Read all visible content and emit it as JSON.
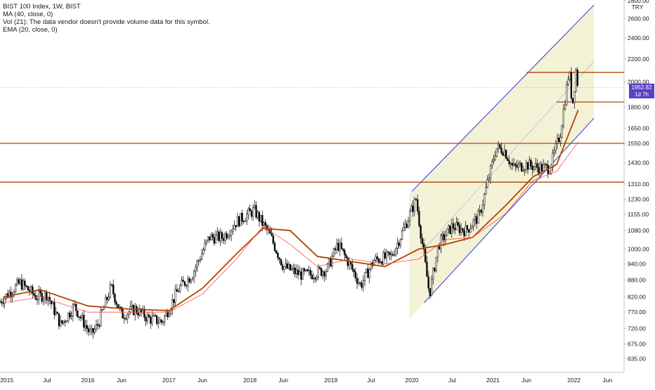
{
  "legend": {
    "title": "BIST 100 Index, 1W, BIST",
    "ma": "MA (40, close, 0)",
    "vol": "Vol (21): The data vendor doesn't provide volume data for this symbol.",
    "ema": "EMA (20, close, 0)"
  },
  "currency": "TRY",
  "last_price_label": "1952.82",
  "countdown_label": "1d 7h",
  "colors": {
    "candle": "#000000",
    "ma": "#ff4d4d",
    "ema": "#b24400",
    "channel_line": "#2a3bd6",
    "channel_fill": "#f2f0d2",
    "hline": "#b24400",
    "badge": "#5b3fc4"
  },
  "chart_data": {
    "type": "candlestick",
    "title": "BIST 100 Index, 1W, BIST",
    "y_scale": "log",
    "ylim": [
      605,
      2800
    ],
    "xlim": [
      "2014-12-01",
      "2022-08-15"
    ],
    "y_ticks": [
      "2800.00",
      "2600.00",
      "2400.00",
      "2200.00",
      "2000.00",
      "1800.00",
      "1650.00",
      "1550.00",
      "1430.00",
      "1310.00",
      "1230.00",
      "1155.00",
      "1080.00",
      "1000.00",
      "940.00",
      "880.00",
      "820.00",
      "770.00",
      "720.00",
      "675.00",
      "635.00"
    ],
    "x_ticks": [
      {
        "date": "2015-01-01",
        "label": "2015"
      },
      {
        "date": "2015-07-01",
        "label": "Jul"
      },
      {
        "date": "2016-01-01",
        "label": "2016"
      },
      {
        "date": "2016-06-01",
        "label": "Jun"
      },
      {
        "date": "2017-01-01",
        "label": "2017"
      },
      {
        "date": "2017-06-01",
        "label": "Jun"
      },
      {
        "date": "2018-01-01",
        "label": "2018"
      },
      {
        "date": "2018-06-01",
        "label": "Jun"
      },
      {
        "date": "2019-01-01",
        "label": "2019"
      },
      {
        "date": "2019-07-01",
        "label": "Jul"
      },
      {
        "date": "2020-01-01",
        "label": "2020"
      },
      {
        "date": "2020-07-01",
        "label": "Jul"
      },
      {
        "date": "2021-01-01",
        "label": "2021"
      },
      {
        "date": "2021-06-01",
        "label": "Jun"
      },
      {
        "date": "2022-01-01",
        "label": "2022"
      },
      {
        "date": "2022-06-01",
        "label": "Jun"
      }
    ],
    "close_path": [
      [
        "2014-12-01",
        805
      ],
      [
        "2015-03-01",
        870
      ],
      [
        "2015-05-15",
        820
      ],
      [
        "2015-07-01",
        830
      ],
      [
        "2015-09-01",
        730
      ],
      [
        "2015-11-01",
        790
      ],
      [
        "2016-01-15",
        700
      ],
      [
        "2016-02-15",
        730
      ],
      [
        "2016-04-15",
        855
      ],
      [
        "2016-06-01",
        760
      ],
      [
        "2016-08-01",
        780
      ],
      [
        "2016-10-01",
        750
      ],
      [
        "2016-12-01",
        740
      ],
      [
        "2017-02-15",
        850
      ],
      [
        "2017-04-15",
        900
      ],
      [
        "2017-07-01",
        1050
      ],
      [
        "2017-09-01",
        1050
      ],
      [
        "2017-11-01",
        1120
      ],
      [
        "2018-01-20",
        1175
      ],
      [
        "2018-04-01",
        1060
      ],
      [
        "2018-06-01",
        930
      ],
      [
        "2018-08-15",
        900
      ],
      [
        "2018-10-01",
        900
      ],
      [
        "2018-12-15",
        920
      ],
      [
        "2019-02-01",
        1020
      ],
      [
        "2019-04-01",
        930
      ],
      [
        "2019-05-15",
        860
      ],
      [
        "2019-07-15",
        955
      ],
      [
        "2019-10-01",
        970
      ],
      [
        "2019-12-01",
        1100
      ],
      [
        "2020-01-20",
        1230
      ],
      [
        "2020-03-20",
        830
      ],
      [
        "2020-05-01",
        1020
      ],
      [
        "2020-07-01",
        1100
      ],
      [
        "2020-09-01",
        1080
      ],
      [
        "2020-11-01",
        1150
      ],
      [
        "2021-01-15",
        1520
      ],
      [
        "2021-02-20",
        1510
      ],
      [
        "2021-04-01",
        1400
      ],
      [
        "2021-06-01",
        1420
      ],
      [
        "2021-08-01",
        1400
      ],
      [
        "2021-09-15",
        1400
      ],
      [
        "2021-11-01",
        1620
      ],
      [
        "2021-12-10",
        2100
      ],
      [
        "2021-12-25",
        1810
      ],
      [
        "2022-01-10",
        2100
      ],
      [
        "2022-01-20",
        1952.82
      ]
    ],
    "ma_40_path": [
      [
        "2014-12-15",
        820
      ],
      [
        "2015-06-01",
        845
      ],
      [
        "2016-01-01",
        790
      ],
      [
        "2016-07-01",
        780
      ],
      [
        "2017-01-01",
        775
      ],
      [
        "2017-06-01",
        850
      ],
      [
        "2017-11-01",
        980
      ],
      [
        "2018-03-01",
        1090
      ],
      [
        "2018-07-01",
        1080
      ],
      [
        "2018-11-01",
        970
      ],
      [
        "2019-04-01",
        950
      ],
      [
        "2019-09-01",
        930
      ],
      [
        "2020-02-01",
        1000
      ],
      [
        "2020-06-01",
        1020
      ],
      [
        "2020-10-01",
        1050
      ],
      [
        "2021-03-01",
        1200
      ],
      [
        "2021-07-01",
        1350
      ],
      [
        "2021-10-15",
        1420
      ],
      [
        "2022-01-20",
        1780
      ]
    ],
    "ema_20_path": [
      [
        "2014-12-15",
        800
      ],
      [
        "2015-06-01",
        820
      ],
      [
        "2016-01-01",
        770
      ],
      [
        "2016-07-01",
        770
      ],
      [
        "2017-01-01",
        770
      ],
      [
        "2017-06-01",
        830
      ],
      [
        "2017-11-01",
        960
      ],
      [
        "2018-03-01",
        1100
      ],
      [
        "2018-07-01",
        1020
      ],
      [
        "2018-11-01",
        930
      ],
      [
        "2019-04-01",
        960
      ],
      [
        "2019-09-01",
        940
      ],
      [
        "2020-02-01",
        960
      ],
      [
        "2020-06-01",
        1040
      ],
      [
        "2020-10-01",
        1050
      ],
      [
        "2021-03-01",
        1160
      ],
      [
        "2021-07-01",
        1330
      ],
      [
        "2021-10-15",
        1380
      ],
      [
        "2022-01-20",
        1560
      ]
    ],
    "horizontal_lines": [
      {
        "price": 2080,
        "from": "2021-06-01"
      },
      {
        "price": 1840,
        "from": "2021-10-15"
      },
      {
        "price": 1550,
        "from": "2014-12-01"
      },
      {
        "price": 1320,
        "from": "2014-12-01"
      }
    ],
    "channel": {
      "upper_start": [
        "2020-01-01",
        1270
      ],
      "upper_end": [
        "2022-04-01",
        2750
      ],
      "lower_start": [
        "2020-02-25",
        800
      ],
      "lower_end": [
        "2022-04-01",
        1720
      ],
      "fill_start": "2019-12-20",
      "fill_end": "2022-04-01",
      "mid_start": [
        "2020-02-25",
        1000
      ],
      "mid_end": [
        "2022-04-01",
        2180
      ]
    }
  }
}
